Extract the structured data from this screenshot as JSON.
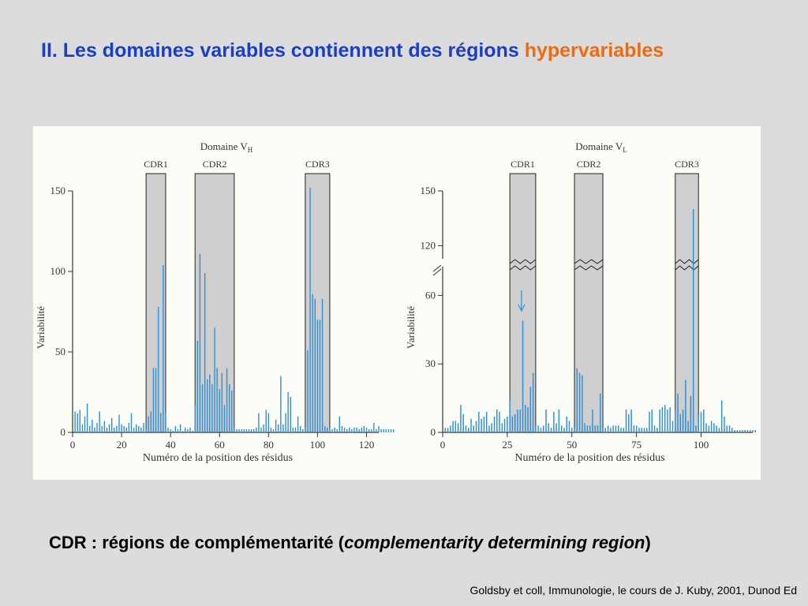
{
  "slide": {
    "title_main": "II. Les domaines variables contiennent des régions",
    "title_accent": "hypervariables",
    "caption_prefix": "CDR : régions de complémentarité (",
    "caption_italic": "complementarity determining region",
    "caption_suffix": ")",
    "source": "Goldsby et coll, Immunologie, le cours de J. Kuby, 2001, Dunod Ed"
  },
  "colors": {
    "bar": "#2e8fd6",
    "cdr_fill": "#cfcfcf",
    "axis": "#333333",
    "title": "#1a3ec8",
    "accent": "#f06a0f"
  },
  "chart_data": [
    {
      "type": "bar",
      "title": "Domaine V",
      "title_sub": "H",
      "xlabel": "Numéro de la position des résidus",
      "ylabel": "Variabilité",
      "xlim": [
        0,
        125
      ],
      "ylim": [
        0,
        150
      ],
      "xticks": [
        0,
        20,
        40,
        60,
        80,
        100,
        120
      ],
      "yticks": [
        0,
        50,
        100,
        150
      ],
      "regions": [
        {
          "name": "CDR1",
          "start": 30,
          "end": 37
        },
        {
          "name": "CDR2",
          "start": 50,
          "end": 65
        },
        {
          "name": "CDR3",
          "start": 95,
          "end": 104
        }
      ],
      "values": [
        13,
        12,
        14,
        5,
        10,
        18,
        4,
        8,
        3,
        6,
        13,
        4,
        7,
        3,
        5,
        9,
        3,
        4,
        11,
        5,
        4,
        3,
        6,
        12,
        3,
        5,
        4,
        3,
        6,
        2,
        10,
        13,
        40,
        40,
        78,
        12,
        104,
        12,
        3,
        2,
        1,
        4,
        2,
        5,
        1,
        3,
        2,
        3,
        1,
        17,
        57,
        111,
        30,
        99,
        33,
        36,
        30,
        65,
        40,
        27,
        37,
        17,
        40,
        30,
        26,
        3,
        2,
        2,
        2,
        2,
        2,
        2,
        2,
        2,
        3,
        12,
        3,
        5,
        14,
        12,
        3,
        2,
        8,
        5,
        35,
        5,
        12,
        25,
        22,
        3,
        3,
        10,
        4,
        2,
        3,
        51,
        152,
        86,
        83,
        70,
        70,
        83,
        4,
        3,
        3,
        2,
        3,
        2,
        10,
        4,
        3,
        2,
        3,
        2,
        3,
        3,
        2,
        3,
        4,
        3,
        2,
        2,
        6,
        2,
        4,
        2,
        2,
        2,
        2,
        2,
        2
      ]
    },
    {
      "type": "bar",
      "title": "Domaine V",
      "title_sub": "L",
      "xlabel": "Numéro de la position des résidus",
      "ylabel": "Variabilité",
      "xlim": [
        0,
        120
      ],
      "ylim": [
        0,
        150
      ],
      "y_break": {
        "from": 75,
        "to": 115
      },
      "xticks": [
        0,
        25,
        50,
        75,
        100
      ],
      "yticks": [
        0,
        30,
        60,
        120,
        150
      ],
      "regions": [
        {
          "name": "CDR1",
          "start": 26,
          "end": 35
        },
        {
          "name": "CDR2",
          "start": 51,
          "end": 61
        },
        {
          "name": "CDR3",
          "start": 90,
          "end": 98
        },
        {
          "name": "arrow",
          "start": 30,
          "end": 30
        }
      ],
      "values": [
        2,
        2,
        3,
        5,
        5,
        4,
        12,
        8,
        3,
        2,
        6,
        3,
        5,
        9,
        6,
        7,
        9,
        3,
        4,
        7,
        10,
        9,
        4,
        6,
        7,
        14,
        7,
        8,
        10,
        10,
        49,
        12,
        11,
        20,
        26,
        3,
        3,
        2,
        3,
        10,
        4,
        2,
        9,
        4,
        10,
        3,
        2,
        7,
        5,
        2,
        2,
        28,
        26,
        25,
        4,
        3,
        3,
        10,
        3,
        3,
        17,
        2,
        2,
        3,
        2,
        3,
        3,
        3,
        2,
        2,
        10,
        8,
        10,
        3,
        3,
        2,
        2,
        2,
        2,
        9,
        10,
        3,
        2,
        10,
        11,
        12,
        10,
        11,
        5,
        10,
        17,
        8,
        10,
        23,
        5,
        16,
        140,
        3,
        8,
        9,
        10,
        4,
        3,
        5,
        4,
        3,
        2,
        14,
        7,
        3,
        3,
        2,
        1,
        1,
        1,
        1,
        1,
        1,
        1,
        1,
        1
      ]
    }
  ]
}
